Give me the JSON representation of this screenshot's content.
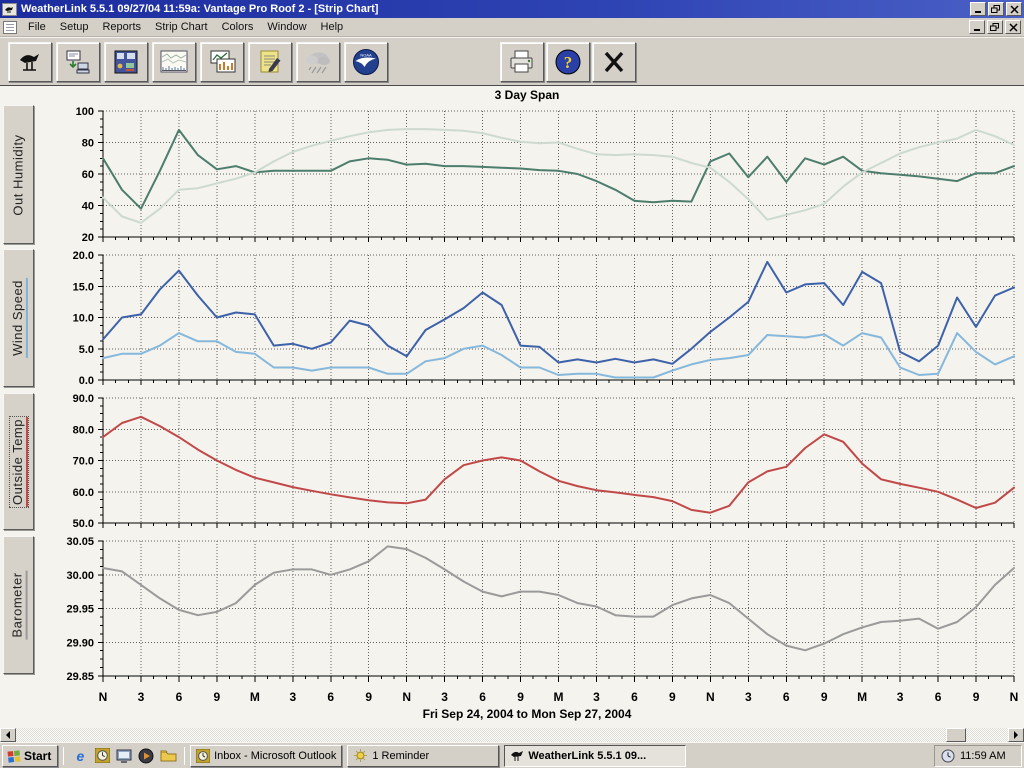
{
  "window": {
    "title": "WeatherLink 5.5.1  09/27/04  11:59a: Vantage Pro Roof 2 - [Strip Chart]"
  },
  "menu": {
    "items": [
      "File",
      "Setup",
      "Reports",
      "Strip Chart",
      "Colors",
      "Window",
      "Help"
    ]
  },
  "toolbar": {
    "buttons": [
      "weather-station",
      "download-data",
      "console-bulletin",
      "strip-chart",
      "plot",
      "notes",
      "rain-summary",
      "noaa-summary",
      "print",
      "help",
      "close"
    ],
    "noaa_glyph": "NOAA",
    "help_glyph": "?"
  },
  "icon_glyphs": {
    "ie": "e"
  },
  "chart_data": {
    "type": "line",
    "title": "3 Day Span",
    "x_range_label": "Fri Sep 24, 2004  to  Mon Sep 27, 2004",
    "x_label_sequence": [
      "N",
      "3",
      "6",
      "9",
      "M",
      "3",
      "6",
      "9",
      "N",
      "3",
      "6",
      "9",
      "M",
      "3",
      "6",
      "9",
      "N",
      "3",
      "6",
      "9",
      "M",
      "3",
      "6",
      "9",
      "N"
    ],
    "x_step_hours": 1.5,
    "x_total_hours": 72,
    "grid": "dotted",
    "panels": [
      {
        "label": "Out Humidity",
        "ymin": 20,
        "ymax": 100,
        "yticks": [
          "100",
          "80",
          "60",
          "40",
          "20"
        ],
        "stripe": "",
        "series": [
          {
            "name": "out-humidity",
            "color": "#4c7d6d",
            "values": [
              70,
              50,
              38,
              62,
              88,
              72,
              63,
              65,
              61,
              62,
              62,
              62,
              62,
              68,
              70,
              69,
              66,
              66.5,
              65,
              65,
              64.5,
              64,
              63.5,
              62.5,
              62,
              60,
              55.5,
              50,
              43,
              42,
              43,
              42.5,
              68,
              73,
              58,
              71,
              55,
              70,
              66,
              71,
              62,
              60.5,
              59.5,
              58.5,
              57,
              55.5,
              60.5,
              60.5,
              65
            ]
          },
          {
            "name": "secondary-humidity",
            "color": "#ccdacf",
            "values": [
              45,
              33,
              29,
              38,
              50,
              51,
              54,
              57,
              61,
              68,
              74,
              78,
              81,
              84,
              86.5,
              88,
              88.5,
              88.5,
              88,
              87.5,
              86,
              83,
              80.5,
              79.5,
              80,
              76,
              72.5,
              72,
              72.5,
              72,
              71,
              67,
              64,
              55,
              44,
              31,
              34,
              37,
              41,
              52,
              61,
              67,
              73,
              77,
              80,
              82.5,
              88,
              84,
              78.5
            ]
          }
        ]
      },
      {
        "label": "Wind Speed",
        "ymin": 0,
        "ymax": 20,
        "yticks": [
          "20.0",
          "15.0",
          "10.0",
          "5.0",
          "0.0"
        ],
        "stripe": "#7fb2d8",
        "series": [
          {
            "name": "wind-speed-high",
            "color": "#3d62aa",
            "values": [
              6.5,
              10,
              10.5,
              14.5,
              17.5,
              13.5,
              10,
              10.8,
              10.5,
              5.5,
              5.8,
              5,
              6,
              9.5,
              8.7,
              5.5,
              3.8,
              8,
              9.7,
              11.5,
              14,
              12,
              5.5,
              5.3,
              2.8,
              3.3,
              2.8,
              3.4,
              2.8,
              3.3,
              2.6,
              5,
              7.7,
              10,
              12.5,
              18.9,
              14,
              15.3,
              15.5,
              12,
              17.3,
              15.5,
              4.5,
              3,
              5.5,
              13.2,
              8.5,
              13.5,
              14.8
            ]
          },
          {
            "name": "wind-speed-avg",
            "color": "#85b8dc",
            "values": [
              3.5,
              4.2,
              4.2,
              5.5,
              7.5,
              6.2,
              6.2,
              4.5,
              4.2,
              2,
              2,
              1.5,
              2,
              2,
              2,
              1,
              1,
              3,
              3.5,
              5,
              5.5,
              4,
              2,
              2,
              0.8,
              1,
              1,
              0.4,
              0.4,
              0.4,
              1.5,
              2.5,
              3.2,
              3.5,
              4,
              7.2,
              7,
              6.8,
              7.3,
              5.5,
              7.5,
              6.8,
              2,
              0.8,
              1,
              7.5,
              4.5,
              2.5,
              3.8
            ]
          }
        ]
      },
      {
        "label": "Outside Temp",
        "ymin": 50,
        "ymax": 90,
        "yticks": [
          "90.0",
          "80.0",
          "70.0",
          "60.0",
          "50.0"
        ],
        "stripe": "#c14848",
        "series": [
          {
            "name": "outside-temp",
            "color": "#c14848",
            "values": [
              77.5,
              82,
              84,
              81,
              77.5,
              73.5,
              70,
              67,
              64.5,
              63,
              61.5,
              60.3,
              59.2,
              58.2,
              57.3,
              56.6,
              56.3,
              57.5,
              64,
              68.5,
              70,
              71,
              70,
              66.5,
              63.5,
              61.8,
              60.5,
              59.8,
              59,
              58.3,
              57,
              54.2,
              53.3,
              55.5,
              63,
              66.5,
              68,
              74,
              78.4,
              76,
              69,
              64,
              62.5,
              61.3,
              60,
              57.5,
              54.8,
              56.5,
              61.3
            ]
          }
        ]
      },
      {
        "label": "Barometer",
        "ymin": 29.85,
        "ymax": 30.05,
        "yticks": [
          "30.05",
          "30.00",
          "29.95",
          "29.90",
          "29.85"
        ],
        "stripe": "#9a9a9a",
        "series": [
          {
            "name": "barometer",
            "color": "#9a9a9a",
            "values": [
              30.01,
              30.005,
              29.985,
              29.965,
              29.948,
              29.94,
              29.945,
              29.958,
              29.985,
              30.003,
              30.008,
              30.008,
              30.0,
              30.008,
              30.02,
              30.042,
              30.038,
              30.025,
              30.008,
              29.99,
              29.975,
              29.968,
              29.975,
              29.975,
              29.97,
              29.958,
              29.953,
              29.94,
              29.938,
              29.938,
              29.955,
              29.965,
              29.97,
              29.958,
              29.935,
              29.912,
              29.895,
              29.888,
              29.898,
              29.912,
              29.922,
              29.93,
              29.932,
              29.935,
              29.92,
              29.93,
              29.952,
              29.985,
              30.01
            ]
          }
        ]
      }
    ]
  },
  "taskbar": {
    "start_label": "Start",
    "quick_launch": [
      "internet-explorer",
      "outlook",
      "show-desktop",
      "media-player",
      "folder"
    ],
    "tasks": [
      {
        "label": "Inbox - Microsoft Outlook"
      },
      {
        "label": "1 Reminder"
      },
      {
        "label": "WeatherLink 5.5.1  09..."
      }
    ],
    "time": "11:59 AM"
  }
}
